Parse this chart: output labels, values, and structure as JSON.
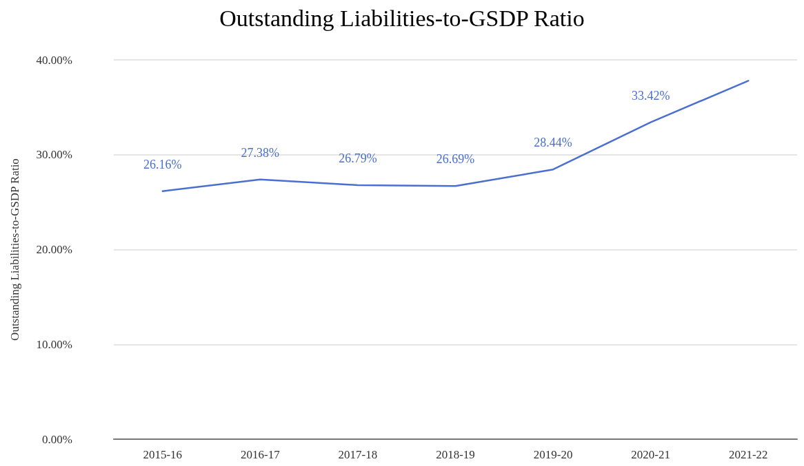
{
  "chart_data": {
    "type": "line",
    "title": "Outstanding Liabilities-to-GSDP Ratio",
    "ylabel": "Outstanding Liabilities-to-GSDP Ratio",
    "categories": [
      "2015-16",
      "2016-17",
      "2017-18",
      "2018-19",
      "2019-20",
      "2020-21",
      "2021-22"
    ],
    "series": [
      {
        "color": "#4a6fd0",
        "values": [
          26.16,
          27.38,
          26.79,
          26.69,
          28.44,
          33.42,
          37.8
        ],
        "value_labels": [
          "26.16%",
          "27.38%",
          "26.79%",
          "26.69%",
          "28.44%",
          "33.42%",
          null
        ]
      }
    ],
    "ylim": [
      0,
      40
    ],
    "yticks": [
      {
        "value": 0,
        "label": "0.00%"
      },
      {
        "value": 10,
        "label": "10.00%"
      },
      {
        "value": 20,
        "label": "20.00%"
      },
      {
        "value": 30,
        "label": "30.00%"
      },
      {
        "value": 40,
        "label": "40.00%"
      }
    ],
    "grid": "y",
    "marker": "none",
    "line_style": "solid"
  }
}
